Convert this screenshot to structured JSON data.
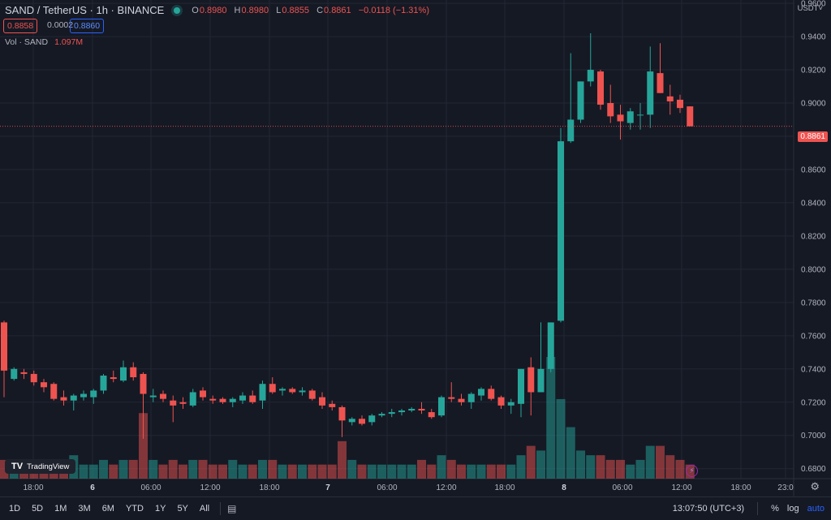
{
  "header": {
    "symbol": "SAND / TetherUS · 1h · BINANCE",
    "ohlc": {
      "o_label": "O",
      "o": "0.8980",
      "h_label": "H",
      "h": "0.8980",
      "l_label": "L",
      "l": "0.8855",
      "c_label": "C",
      "c": "0.8861",
      "chg": "−0.0118 (−1.31%)"
    },
    "bid": "0.8858",
    "spread": "0.0002",
    "ask": "0.8860",
    "vol_label": "Vol · SAND",
    "vol_value": "1.097M"
  },
  "currency": "USDT˅",
  "last_price": "0.8861",
  "logo": "TradingView",
  "bottom": {
    "ranges": [
      "1D",
      "5D",
      "1M",
      "3M",
      "6M",
      "YTD",
      "1Y",
      "5Y",
      "All"
    ],
    "calendar_icon": "calendar-icon",
    "clock": "13:07:50 (UTC+3)",
    "percent": "%",
    "log": "log",
    "auto": "auto"
  },
  "colors": {
    "up": "#26a69a",
    "down": "#ef5350",
    "bg": "#151924",
    "grid": "#232734",
    "accent": "#2962ff"
  },
  "chart_data": {
    "type": "candlestick",
    "y_axis_ticks": [
      "0.9600",
      "0.9400",
      "0.9200",
      "0.9000",
      "0.8800",
      "0.8600",
      "0.8400",
      "0.8200",
      "0.8000",
      "0.7800",
      "0.7600",
      "0.7400",
      "0.7200",
      "0.7000",
      "0.6800"
    ],
    "ylim": [
      0.674,
      0.962
    ],
    "x_ticks": [
      "18:00",
      "6",
      "06:00",
      "12:00",
      "18:00",
      "7",
      "06:00",
      "12:00",
      "18:00",
      "8",
      "06:00",
      "12:00",
      "18:00",
      "23:0"
    ],
    "candles": [
      {
        "o": 0.768,
        "h": 0.769,
        "l": 0.723,
        "c": 0.739,
        "v": 4
      },
      {
        "o": 0.734,
        "h": 0.741,
        "l": 0.733,
        "c": 0.74,
        "v": 3
      },
      {
        "o": 0.738,
        "h": 0.74,
        "l": 0.734,
        "c": 0.737,
        "v": 3
      },
      {
        "o": 0.737,
        "h": 0.739,
        "l": 0.73,
        "c": 0.732,
        "v": 4
      },
      {
        "o": 0.732,
        "h": 0.734,
        "l": 0.726,
        "c": 0.729,
        "v": 3
      },
      {
        "o": 0.731,
        "h": 0.732,
        "l": 0.721,
        "c": 0.722,
        "v": 4
      },
      {
        "o": 0.723,
        "h": 0.727,
        "l": 0.718,
        "c": 0.721,
        "v": 3
      },
      {
        "o": 0.721,
        "h": 0.725,
        "l": 0.715,
        "c": 0.724,
        "v": 5
      },
      {
        "o": 0.723,
        "h": 0.727,
        "l": 0.721,
        "c": 0.725,
        "v": 3
      },
      {
        "o": 0.723,
        "h": 0.728,
        "l": 0.719,
        "c": 0.727,
        "v": 3
      },
      {
        "o": 0.727,
        "h": 0.737,
        "l": 0.725,
        "c": 0.736,
        "v": 4
      },
      {
        "o": 0.735,
        "h": 0.739,
        "l": 0.732,
        "c": 0.734,
        "v": 3
      },
      {
        "o": 0.733,
        "h": 0.745,
        "l": 0.732,
        "c": 0.741,
        "v": 4
      },
      {
        "o": 0.741,
        "h": 0.744,
        "l": 0.733,
        "c": 0.735,
        "v": 4
      },
      {
        "o": 0.737,
        "h": 0.738,
        "l": 0.698,
        "c": 0.725,
        "v": 14
      },
      {
        "o": 0.723,
        "h": 0.728,
        "l": 0.72,
        "c": 0.724,
        "v": 4
      },
      {
        "o": 0.725,
        "h": 0.727,
        "l": 0.72,
        "c": 0.722,
        "v": 3
      },
      {
        "o": 0.721,
        "h": 0.724,
        "l": 0.708,
        "c": 0.718,
        "v": 4
      },
      {
        "o": 0.72,
        "h": 0.723,
        "l": 0.716,
        "c": 0.719,
        "v": 3
      },
      {
        "o": 0.718,
        "h": 0.728,
        "l": 0.717,
        "c": 0.726,
        "v": 4
      },
      {
        "o": 0.727,
        "h": 0.729,
        "l": 0.721,
        "c": 0.723,
        "v": 4
      },
      {
        "o": 0.722,
        "h": 0.724,
        "l": 0.719,
        "c": 0.721,
        "v": 3
      },
      {
        "o": 0.722,
        "h": 0.723,
        "l": 0.719,
        "c": 0.72,
        "v": 3
      },
      {
        "o": 0.72,
        "h": 0.723,
        "l": 0.717,
        "c": 0.722,
        "v": 4
      },
      {
        "o": 0.721,
        "h": 0.726,
        "l": 0.719,
        "c": 0.724,
        "v": 3
      },
      {
        "o": 0.724,
        "h": 0.727,
        "l": 0.719,
        "c": 0.72,
        "v": 3
      },
      {
        "o": 0.721,
        "h": 0.733,
        "l": 0.716,
        "c": 0.731,
        "v": 4
      },
      {
        "o": 0.731,
        "h": 0.735,
        "l": 0.725,
        "c": 0.726,
        "v": 4
      },
      {
        "o": 0.727,
        "h": 0.729,
        "l": 0.724,
        "c": 0.728,
        "v": 3
      },
      {
        "o": 0.728,
        "h": 0.729,
        "l": 0.725,
        "c": 0.726,
        "v": 3
      },
      {
        "o": 0.726,
        "h": 0.729,
        "l": 0.724,
        "c": 0.727,
        "v": 3
      },
      {
        "o": 0.727,
        "h": 0.728,
        "l": 0.721,
        "c": 0.722,
        "v": 3
      },
      {
        "o": 0.723,
        "h": 0.726,
        "l": 0.716,
        "c": 0.718,
        "v": 3
      },
      {
        "o": 0.719,
        "h": 0.721,
        "l": 0.715,
        "c": 0.717,
        "v": 3
      },
      {
        "o": 0.717,
        "h": 0.718,
        "l": 0.699,
        "c": 0.709,
        "v": 8
      },
      {
        "o": 0.708,
        "h": 0.711,
        "l": 0.706,
        "c": 0.71,
        "v": 4
      },
      {
        "o": 0.71,
        "h": 0.712,
        "l": 0.706,
        "c": 0.707,
        "v": 3
      },
      {
        "o": 0.708,
        "h": 0.713,
        "l": 0.706,
        "c": 0.712,
        "v": 3
      },
      {
        "o": 0.712,
        "h": 0.714,
        "l": 0.711,
        "c": 0.713,
        "v": 3
      },
      {
        "o": 0.713,
        "h": 0.716,
        "l": 0.711,
        "c": 0.714,
        "v": 3
      },
      {
        "o": 0.714,
        "h": 0.716,
        "l": 0.712,
        "c": 0.715,
        "v": 3
      },
      {
        "o": 0.715,
        "h": 0.717,
        "l": 0.714,
        "c": 0.716,
        "v": 3
      },
      {
        "o": 0.716,
        "h": 0.72,
        "l": 0.713,
        "c": 0.715,
        "v": 4
      },
      {
        "o": 0.714,
        "h": 0.716,
        "l": 0.71,
        "c": 0.711,
        "v": 3
      },
      {
        "o": 0.712,
        "h": 0.724,
        "l": 0.711,
        "c": 0.723,
        "v": 5
      },
      {
        "o": 0.723,
        "h": 0.732,
        "l": 0.72,
        "c": 0.722,
        "v": 4
      },
      {
        "o": 0.722,
        "h": 0.725,
        "l": 0.718,
        "c": 0.72,
        "v": 3
      },
      {
        "o": 0.72,
        "h": 0.726,
        "l": 0.716,
        "c": 0.725,
        "v": 3
      },
      {
        "o": 0.724,
        "h": 0.729,
        "l": 0.721,
        "c": 0.728,
        "v": 3
      },
      {
        "o": 0.728,
        "h": 0.73,
        "l": 0.721,
        "c": 0.722,
        "v": 3
      },
      {
        "o": 0.723,
        "h": 0.724,
        "l": 0.716,
        "c": 0.718,
        "v": 3
      },
      {
        "o": 0.718,
        "h": 0.722,
        "l": 0.713,
        "c": 0.72,
        "v": 3
      },
      {
        "o": 0.719,
        "h": 0.74,
        "l": 0.711,
        "c": 0.74,
        "v": 5
      },
      {
        "o": 0.741,
        "h": 0.747,
        "l": 0.712,
        "c": 0.726,
        "v": 7
      },
      {
        "o": 0.726,
        "h": 0.768,
        "l": 0.726,
        "c": 0.74,
        "v": 6
      },
      {
        "o": 0.74,
        "h": 0.768,
        "l": 0.738,
        "c": 0.768,
        "v": 26
      },
      {
        "o": 0.769,
        "h": 0.885,
        "l": 0.768,
        "c": 0.877,
        "v": 17
      },
      {
        "o": 0.877,
        "h": 0.93,
        "l": 0.876,
        "c": 0.89,
        "v": 11
      },
      {
        "o": 0.89,
        "h": 0.913,
        "l": 0.888,
        "c": 0.913,
        "v": 6
      },
      {
        "o": 0.913,
        "h": 0.942,
        "l": 0.91,
        "c": 0.92,
        "v": 5
      },
      {
        "o": 0.919,
        "h": 0.92,
        "l": 0.896,
        "c": 0.899,
        "v": 5
      },
      {
        "o": 0.9,
        "h": 0.911,
        "l": 0.888,
        "c": 0.892,
        "v": 4
      },
      {
        "o": 0.893,
        "h": 0.899,
        "l": 0.878,
        "c": 0.889,
        "v": 4
      },
      {
        "o": 0.888,
        "h": 0.897,
        "l": 0.884,
        "c": 0.895,
        "v": 3
      },
      {
        "o": 0.893,
        "h": 0.9,
        "l": 0.884,
        "c": 0.893,
        "v": 4
      },
      {
        "o": 0.893,
        "h": 0.934,
        "l": 0.885,
        "c": 0.919,
        "v": 7
      },
      {
        "o": 0.918,
        "h": 0.936,
        "l": 0.906,
        "c": 0.906,
        "v": 7
      },
      {
        "o": 0.904,
        "h": 0.911,
        "l": 0.893,
        "c": 0.901,
        "v": 5
      },
      {
        "o": 0.902,
        "h": 0.905,
        "l": 0.894,
        "c": 0.897,
        "v": 4
      },
      {
        "o": 0.898,
        "h": 0.898,
        "l": 0.886,
        "c": 0.886,
        "v": 3
      }
    ]
  }
}
